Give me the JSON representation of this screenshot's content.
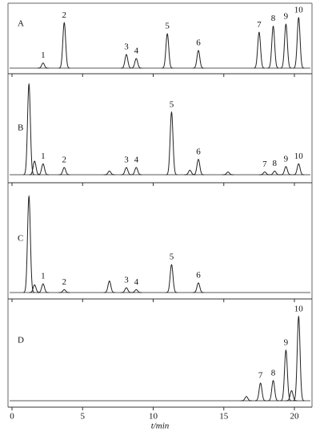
{
  "chart_data": [
    {
      "type": "line",
      "panel_label": "A",
      "xlim": [
        0,
        21
      ],
      "xticks": [
        0,
        5,
        10,
        15,
        20
      ],
      "ylim": [
        0,
        100
      ],
      "color": "#222222",
      "peaks": [
        {
          "label": "1",
          "x": 2.2,
          "height": 10
        },
        {
          "label": "2",
          "x": 3.7,
          "height": 90
        },
        {
          "label": "3",
          "x": 8.1,
          "height": 27
        },
        {
          "label": "4",
          "x": 8.8,
          "height": 19
        },
        {
          "label": "5",
          "x": 11.0,
          "height": 68
        },
        {
          "label": "6",
          "x": 13.2,
          "height": 35
        },
        {
          "label": "7",
          "x": 17.5,
          "height": 71
        },
        {
          "label": "8",
          "x": 18.5,
          "height": 83
        },
        {
          "label": "9",
          "x": 19.4,
          "height": 87
        },
        {
          "label": "10",
          "x": 20.3,
          "height": 100
        }
      ]
    },
    {
      "type": "line",
      "panel_label": "B",
      "xlim": [
        0,
        21
      ],
      "xticks": [
        0,
        5,
        10,
        15,
        20
      ],
      "ylim": [
        0,
        100
      ],
      "color": "#222222",
      "peaks": [
        {
          "label": null,
          "x": 1.2,
          "height": 100
        },
        {
          "label": null,
          "x": 1.6,
          "height": 15
        },
        {
          "label": "1",
          "x": 2.2,
          "height": 12
        },
        {
          "label": "2",
          "x": 3.7,
          "height": 8
        },
        {
          "label": null,
          "x": 6.9,
          "height": 4
        },
        {
          "label": "3",
          "x": 8.1,
          "height": 8
        },
        {
          "label": "4",
          "x": 8.8,
          "height": 8
        },
        {
          "label": "5",
          "x": 11.3,
          "height": 69
        },
        {
          "label": null,
          "x": 12.6,
          "height": 5
        },
        {
          "label": "6",
          "x": 13.2,
          "height": 17
        },
        {
          "label": null,
          "x": 15.3,
          "height": 3
        },
        {
          "label": "7",
          "x": 17.9,
          "height": 3
        },
        {
          "label": "8",
          "x": 18.6,
          "height": 4
        },
        {
          "label": "9",
          "x": 19.4,
          "height": 9
        },
        {
          "label": "10",
          "x": 20.3,
          "height": 12
        }
      ]
    },
    {
      "type": "line",
      "panel_label": "C",
      "xlim": [
        0,
        21
      ],
      "xticks": [
        0,
        5,
        10,
        15,
        20
      ],
      "ylim": [
        0,
        100
      ],
      "color": "#222222",
      "peaks": [
        {
          "label": null,
          "x": 1.2,
          "height": 100
        },
        {
          "label": null,
          "x": 1.6,
          "height": 8
        },
        {
          "label": "1",
          "x": 2.2,
          "height": 9
        },
        {
          "label": "2",
          "x": 3.7,
          "height": 3
        },
        {
          "label": null,
          "x": 6.9,
          "height": 12
        },
        {
          "label": "3",
          "x": 8.1,
          "height": 5
        },
        {
          "label": "4",
          "x": 8.8,
          "height": 3
        },
        {
          "label": "5",
          "x": 11.3,
          "height": 29
        },
        {
          "label": "6",
          "x": 13.2,
          "height": 10
        }
      ]
    },
    {
      "type": "line",
      "panel_label": "D",
      "xlim": [
        0,
        21
      ],
      "xticks": [
        0,
        5,
        10,
        15,
        20
      ],
      "ylim": [
        0,
        100
      ],
      "color": "#222222",
      "xlabel": "t/min",
      "peaks": [
        {
          "label": null,
          "x": 16.6,
          "height": 5
        },
        {
          "label": "7",
          "x": 17.6,
          "height": 21
        },
        {
          "label": "8",
          "x": 18.5,
          "height": 24
        },
        {
          "label": "9",
          "x": 19.4,
          "height": 60
        },
        {
          "label": null,
          "x": 19.8,
          "height": 12
        },
        {
          "label": "10",
          "x": 20.3,
          "height": 100
        }
      ]
    }
  ]
}
